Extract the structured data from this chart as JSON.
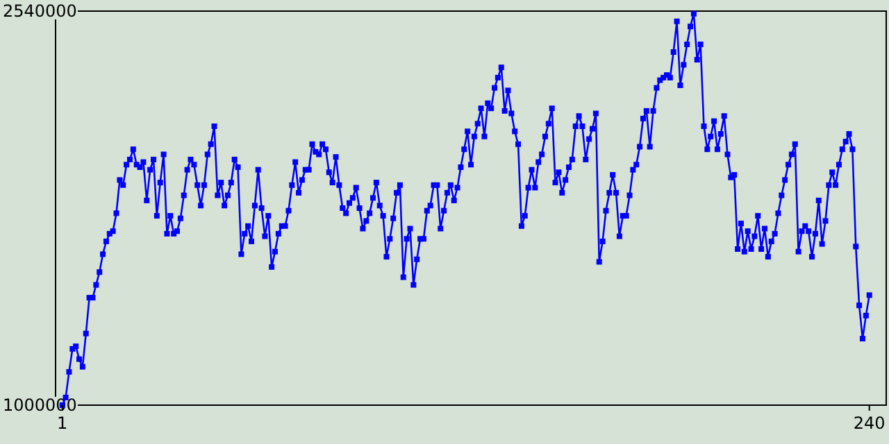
{
  "chart_data": {
    "type": "line",
    "marker": "square",
    "line_style": "solid",
    "grid": false,
    "xlim": [
      -1,
      245
    ],
    "xticks": [
      1,
      240
    ],
    "ylim": [
      1000000,
      2540000
    ],
    "yticks": [
      1000000,
      2540000
    ],
    "x": [
      1,
      2,
      3,
      4,
      5,
      6,
      7,
      8,
      9,
      10,
      11,
      12,
      13,
      14,
      15,
      16,
      17,
      18,
      19,
      20,
      21,
      22,
      23,
      24,
      25,
      26,
      27,
      28,
      29,
      30,
      31,
      32,
      33,
      34,
      35,
      36,
      37,
      38,
      39,
      40,
      41,
      42,
      43,
      44,
      45,
      46,
      47,
      48,
      49,
      50,
      51,
      52,
      53,
      54,
      55,
      56,
      57,
      58,
      59,
      60,
      61,
      62,
      63,
      64,
      65,
      66,
      67,
      68,
      69,
      70,
      71,
      72,
      73,
      74,
      75,
      76,
      77,
      78,
      79,
      80,
      81,
      82,
      83,
      84,
      85,
      86,
      87,
      88,
      89,
      90,
      91,
      92,
      93,
      94,
      95,
      96,
      97,
      98,
      99,
      100,
      101,
      102,
      103,
      104,
      105,
      106,
      107,
      108,
      109,
      110,
      111,
      112,
      113,
      114,
      115,
      116,
      117,
      118,
      119,
      120,
      121,
      122,
      123,
      124,
      125,
      126,
      127,
      128,
      129,
      130,
      131,
      132,
      133,
      134,
      135,
      136,
      137,
      138,
      139,
      140,
      141,
      142,
      143,
      144,
      145,
      146,
      147,
      148,
      149,
      150,
      151,
      152,
      153,
      154,
      155,
      156,
      157,
      158,
      159,
      160,
      161,
      162,
      163,
      164,
      165,
      166,
      167,
      168,
      169,
      170,
      171,
      172,
      173,
      174,
      175,
      176,
      177,
      178,
      179,
      180,
      181,
      182,
      183,
      184,
      185,
      186,
      187,
      188,
      189,
      190,
      191,
      192,
      193,
      194,
      195,
      196,
      197,
      198,
      199,
      200,
      201,
      202,
      203,
      204,
      205,
      206,
      207,
      208,
      209,
      210,
      211,
      212,
      213,
      214,
      215,
      216,
      217,
      218,
      219,
      220,
      221,
      222,
      223,
      224,
      225,
      226,
      227,
      228,
      229,
      230,
      231,
      232,
      233,
      234,
      235,
      236,
      237,
      238,
      239,
      240
    ],
    "series": [
      {
        "color": "#0000ff",
        "values": [
          1000000,
          1030000,
          1130000,
          1220000,
          1230000,
          1180000,
          1150000,
          1280000,
          1420000,
          1420000,
          1470000,
          1520000,
          1590000,
          1640000,
          1670000,
          1680000,
          1750000,
          1880000,
          1860000,
          1940000,
          1960000,
          2000000,
          1940000,
          1930000,
          1950000,
          1800000,
          1920000,
          1960000,
          1740000,
          1870000,
          1980000,
          1670000,
          1740000,
          1670000,
          1680000,
          1730000,
          1820000,
          1920000,
          1960000,
          1940000,
          1860000,
          1780000,
          1860000,
          1980000,
          2020000,
          2090000,
          1820000,
          1870000,
          1780000,
          1820000,
          1870000,
          1960000,
          1930000,
          1590000,
          1670000,
          1700000,
          1640000,
          1780000,
          1920000,
          1770000,
          1660000,
          1740000,
          1540000,
          1600000,
          1670000,
          1700000,
          1700000,
          1760000,
          1860000,
          1950000,
          1830000,
          1880000,
          1920000,
          1920000,
          2020000,
          1990000,
          1980000,
          2020000,
          2000000,
          1910000,
          1870000,
          1970000,
          1860000,
          1770000,
          1750000,
          1790000,
          1810000,
          1850000,
          1770000,
          1690000,
          1720000,
          1750000,
          1810000,
          1870000,
          1780000,
          1740000,
          1580000,
          1650000,
          1730000,
          1830000,
          1860000,
          1500000,
          1650000,
          1690000,
          1470000,
          1570000,
          1650000,
          1650000,
          1760000,
          1780000,
          1860000,
          1860000,
          1690000,
          1760000,
          1830000,
          1860000,
          1800000,
          1850000,
          1930000,
          2000000,
          2070000,
          1940000,
          2050000,
          2100000,
          2160000,
          2050000,
          2180000,
          2160000,
          2240000,
          2280000,
          2320000,
          2150000,
          2230000,
          2140000,
          2070000,
          2020000,
          1700000,
          1740000,
          1850000,
          1920000,
          1850000,
          1950000,
          1980000,
          2050000,
          2100000,
          2160000,
          1870000,
          1910000,
          1830000,
          1880000,
          1930000,
          1960000,
          2090000,
          2130000,
          2090000,
          1960000,
          2040000,
          2080000,
          2140000,
          1560000,
          1640000,
          1760000,
          1830000,
          1900000,
          1830000,
          1660000,
          1740000,
          1740000,
          1820000,
          1920000,
          1940000,
          2010000,
          2120000,
          2150000,
          2010000,
          2150000,
          2240000,
          2270000,
          2280000,
          2290000,
          2280000,
          2380000,
          2500000,
          2250000,
          2330000,
          2410000,
          2480000,
          2530000,
          2350000,
          2410000,
          2090000,
          2000000,
          2050000,
          2110000,
          2000000,
          2060000,
          2130000,
          1980000,
          1890000,
          1900000,
          1610000,
          1710000,
          1600000,
          1680000,
          1610000,
          1660000,
          1740000,
          1610000,
          1690000,
          1580000,
          1640000,
          1670000,
          1750000,
          1820000,
          1880000,
          1940000,
          1980000,
          2020000,
          1600000,
          1680000,
          1700000,
          1680000,
          1580000,
          1670000,
          1800000,
          1630000,
          1720000,
          1860000,
          1910000,
          1860000,
          1940000,
          2000000,
          2030000,
          2060000,
          2000000,
          1620000,
          1390000,
          1260000,
          1350000,
          1430000
        ]
      }
    ]
  }
}
